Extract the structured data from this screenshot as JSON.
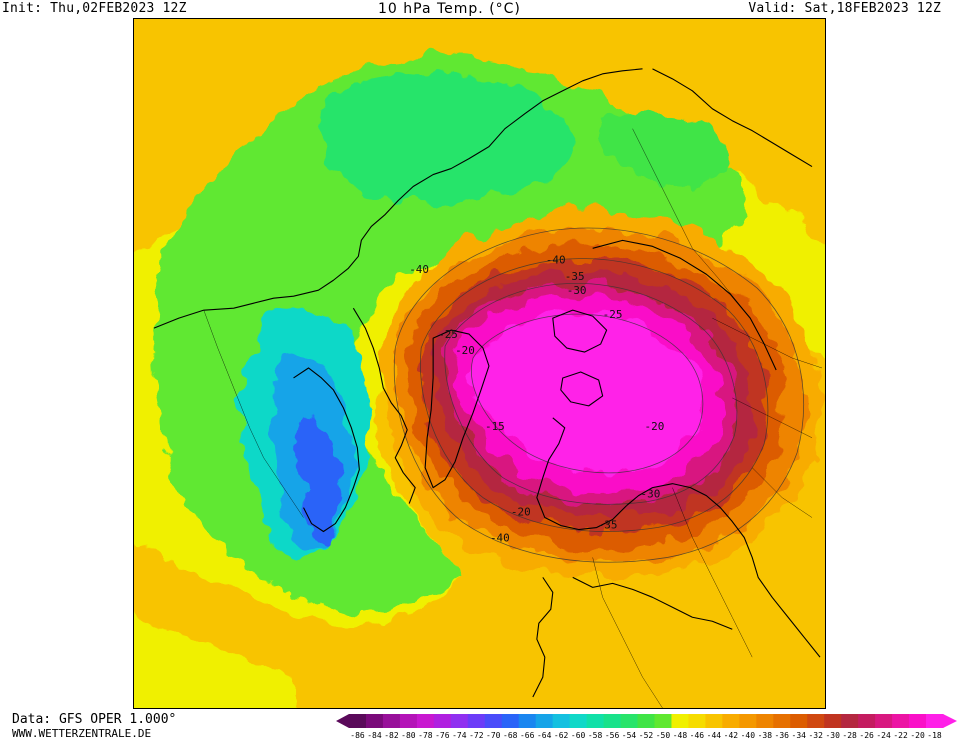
{
  "header": {
    "init": "Init: Thu,02FEB2023 12Z",
    "title": "10 hPa Temp. (°C)",
    "valid": "Valid: Sat,18FEB2023 12Z"
  },
  "footer": {
    "data_source": "Data: GFS OPER 1.000°",
    "website": "WWW.WETTERZENTRALE.DE"
  },
  "map": {
    "contour_labels": [
      "-40",
      "-35",
      "-30",
      "-25",
      "-20",
      "-15",
      "-20",
      "-30",
      "-35",
      "-40",
      "-40",
      "-25",
      "-20"
    ]
  },
  "colorbar": {
    "labels": [
      "-86",
      "-84",
      "-82",
      "-80",
      "-78",
      "-76",
      "-74",
      "-72",
      "-70",
      "-68",
      "-66",
      "-64",
      "-62",
      "-60",
      "-58",
      "-56",
      "-54",
      "-52",
      "-50",
      "-48",
      "-46",
      "-44",
      "-42",
      "-40",
      "-38",
      "-36",
      "-34",
      "-32",
      "-30",
      "-28",
      "-26",
      "-24",
      "-22",
      "-20",
      "-18"
    ],
    "colors": [
      "#5a0a5a",
      "#7a0a7a",
      "#98109a",
      "#b414b8",
      "#c818d0",
      "#b020e0",
      "#9030f0",
      "#6c3cf8",
      "#4a4cfa",
      "#2a64f8",
      "#1a86f0",
      "#16a4e8",
      "#14c0e0",
      "#10d8c8",
      "#10e0a8",
      "#18e28a",
      "#28e46a",
      "#40e446",
      "#60e830",
      "#f0f000",
      "#f6dc00",
      "#f8c400",
      "#f8ac00",
      "#f49800",
      "#ee8400",
      "#e67000",
      "#dc5c00",
      "#d04810",
      "#c03420",
      "#b42840",
      "#c41c60",
      "#d81880",
      "#ec14a4",
      "#fa10c8",
      "#ff20e8"
    ]
  }
}
